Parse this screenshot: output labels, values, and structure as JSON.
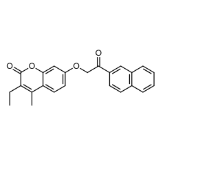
{
  "atoms": [
    {
      "label": "O"
    },
    {
      "label": "O"
    },
    {
      "label": "O"
    },
    {
      "label": "O"
    }
  ]
}
